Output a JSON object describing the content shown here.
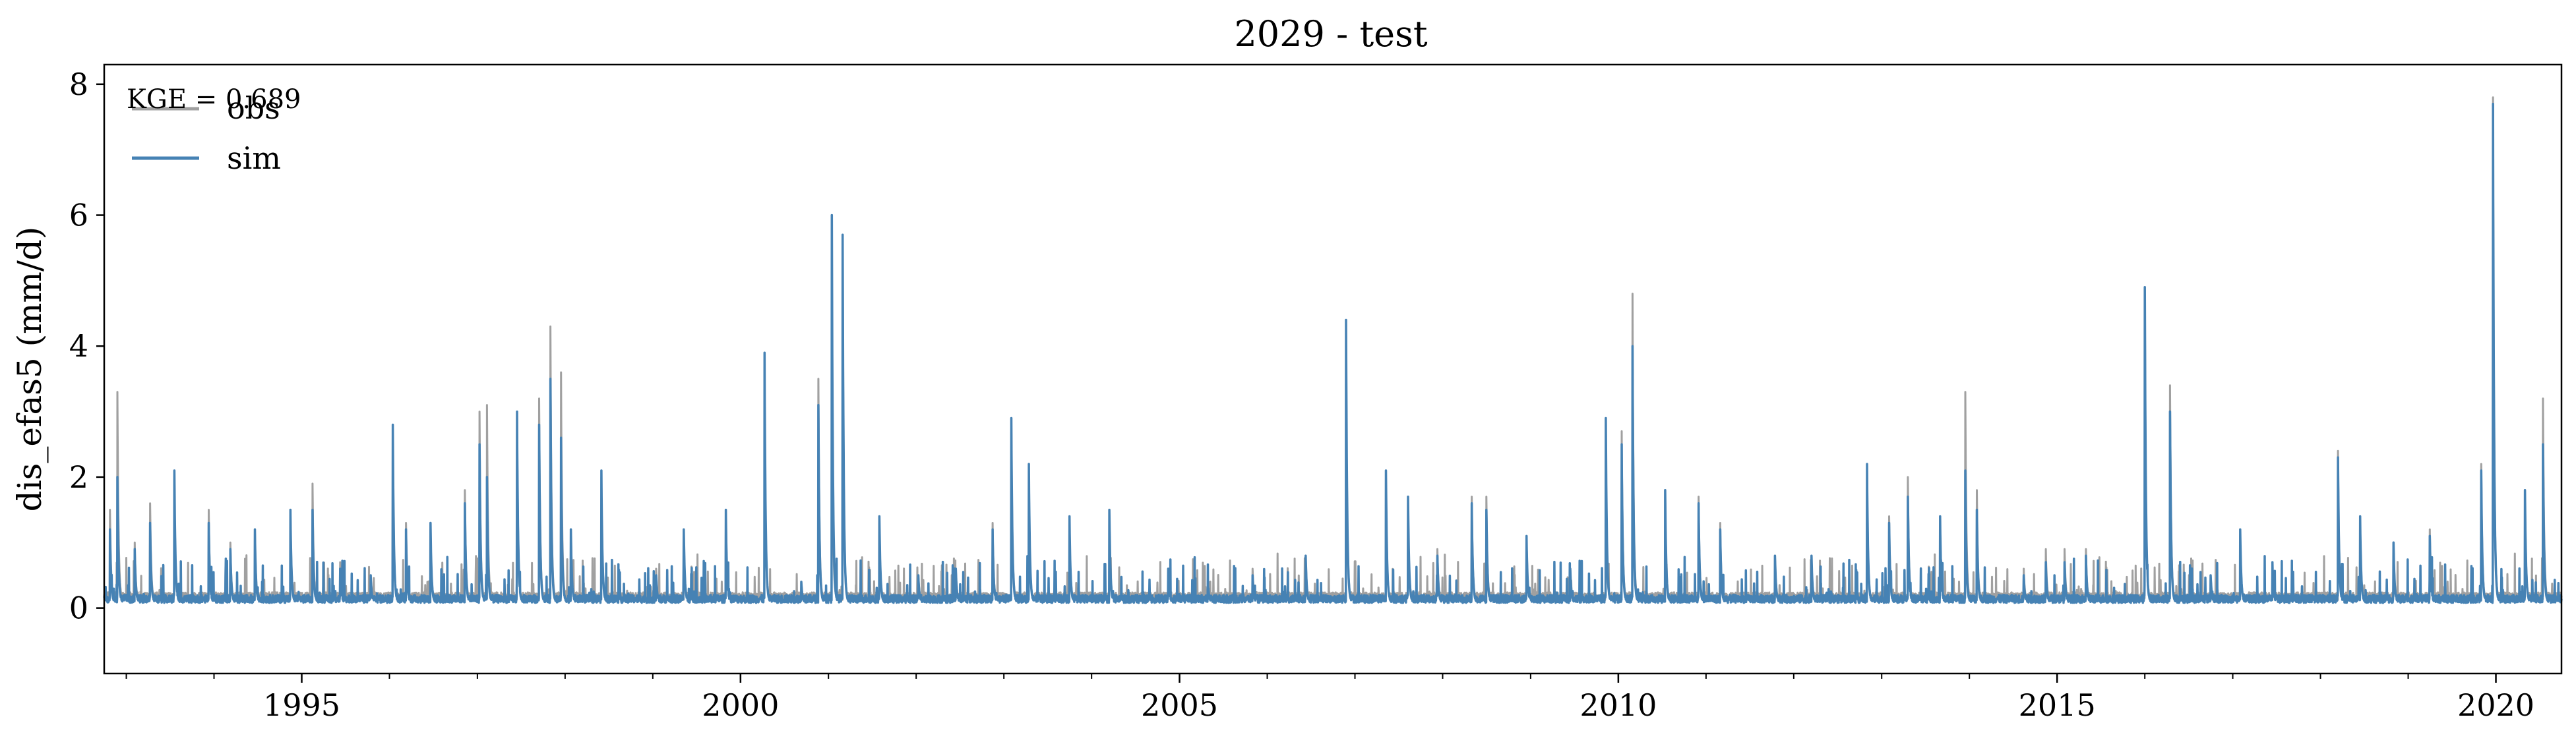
{
  "chart_data": {
    "type": "line",
    "title": "2029 - test",
    "xlabel": "",
    "ylabel": "dis_efas5 (mm/d)",
    "xlim": [
      "1992-10-01",
      "2020-09-30"
    ],
    "ylim": [
      -1,
      8.3
    ],
    "x_ticks": [
      "1995",
      "2000",
      "2005",
      "2010",
      "2015",
      "2020"
    ],
    "y_ticks": [
      0,
      2,
      4,
      6,
      8
    ],
    "grid": false,
    "legend": {
      "position": "top-left",
      "entries": [
        "obs",
        "sim"
      ]
    },
    "annotation": "KGE = 0.689",
    "colors": {
      "obs": "#a0a0a0",
      "sim": "#4682b4"
    },
    "series": [
      {
        "name": "obs",
        "peaks": [
          [
            "1992-10-25",
            1.5
          ],
          [
            "1992-11-25",
            3.3
          ],
          [
            "1993-02-05",
            1.0
          ],
          [
            "1993-04-10",
            1.6
          ],
          [
            "1993-07-20",
            2.0
          ],
          [
            "1993-12-10",
            1.5
          ],
          [
            "1994-03-10",
            1.0
          ],
          [
            "1994-06-20",
            1.2
          ],
          [
            "1994-11-15",
            1.5
          ],
          [
            "1995-02-15",
            1.9
          ],
          [
            "1995-06-10",
            0.7
          ],
          [
            "1995-10-15",
            0.5
          ],
          [
            "1996-01-15",
            2.2
          ],
          [
            "1996-03-10",
            1.3
          ],
          [
            "1996-06-20",
            1.2
          ],
          [
            "1996-11-10",
            1.8
          ],
          [
            "1997-01-10",
            3.0
          ],
          [
            "1997-02-10",
            3.1
          ],
          [
            "1997-06-15",
            3.0
          ],
          [
            "1997-09-15",
            3.2
          ],
          [
            "1997-11-01",
            4.3
          ],
          [
            "1997-12-15",
            3.6
          ],
          [
            "1998-01-25",
            1.2
          ],
          [
            "1998-06-01",
            2.0
          ],
          [
            "1999-01-15",
            0.6
          ],
          [
            "1999-05-10",
            1.1
          ],
          [
            "1999-11-01",
            1.5
          ],
          [
            "2000-04-10",
            3.3
          ],
          [
            "2000-09-10",
            0.4
          ],
          [
            "2000-11-20",
            3.5
          ],
          [
            "2001-01-15",
            3.8
          ],
          [
            "2001-03-01",
            5.5
          ],
          [
            "2001-08-01",
            1.3
          ],
          [
            "2002-01-10",
            0.5
          ],
          [
            "2002-06-15",
            0.6
          ],
          [
            "2002-11-15",
            1.3
          ],
          [
            "2003-02-01",
            2.8
          ],
          [
            "2003-04-15",
            2.0
          ],
          [
            "2003-10-01",
            1.3
          ],
          [
            "2004-03-15",
            1.4
          ],
          [
            "2004-11-15",
            0.6
          ],
          [
            "2005-05-01",
            0.4
          ],
          [
            "2005-11-01",
            0.6
          ],
          [
            "2006-06-10",
            0.8
          ],
          [
            "2006-11-25",
            4.2
          ],
          [
            "2007-05-10",
            2.0
          ],
          [
            "2007-08-10",
            1.6
          ],
          [
            "2007-12-10",
            0.9
          ],
          [
            "2008-05-01",
            1.7
          ],
          [
            "2008-07-01",
            1.7
          ],
          [
            "2008-12-15",
            1.1
          ],
          [
            "2009-06-15",
            0.6
          ],
          [
            "2009-11-10",
            2.0
          ],
          [
            "2010-01-15",
            2.7
          ],
          [
            "2010-03-01",
            4.8
          ],
          [
            "2010-07-15",
            1.8
          ],
          [
            "2010-12-01",
            1.7
          ],
          [
            "2011-03-01",
            1.3
          ],
          [
            "2011-10-15",
            0.8
          ],
          [
            "2012-03-15",
            0.7
          ],
          [
            "2012-11-01",
            2.1
          ],
          [
            "2013-02-01",
            1.4
          ],
          [
            "2013-04-20",
            2.0
          ],
          [
            "2013-09-01",
            1.3
          ],
          [
            "2013-12-15",
            3.3
          ],
          [
            "2014-02-01",
            1.8
          ],
          [
            "2014-08-15",
            0.6
          ],
          [
            "2014-11-15",
            0.9
          ],
          [
            "2015-02-01",
            0.9
          ],
          [
            "2015-05-01",
            0.9
          ],
          [
            "2016-01-01",
            4.8
          ],
          [
            "2016-04-15",
            3.4
          ],
          [
            "2016-10-01",
            0.5
          ],
          [
            "2017-02-01",
            1.1
          ],
          [
            "2017-06-15",
            0.6
          ],
          [
            "2018-03-15",
            2.4
          ],
          [
            "2018-06-15",
            1.3
          ],
          [
            "2018-11-01",
            1.0
          ],
          [
            "2019-04-01",
            1.2
          ],
          [
            "2019-11-01",
            2.2
          ],
          [
            "2019-12-20",
            7.8
          ],
          [
            "2020-05-01",
            1.8
          ],
          [
            "2020-07-15",
            3.2
          ]
        ]
      },
      {
        "name": "sim",
        "peaks": [
          [
            "1992-10-25",
            1.2
          ],
          [
            "1992-11-25",
            2.0
          ],
          [
            "1993-02-05",
            0.9
          ],
          [
            "1993-04-10",
            1.3
          ],
          [
            "1993-07-20",
            2.1
          ],
          [
            "1993-12-10",
            1.3
          ],
          [
            "1994-03-10",
            0.9
          ],
          [
            "1994-06-20",
            1.2
          ],
          [
            "1994-11-15",
            1.5
          ],
          [
            "1995-02-15",
            1.5
          ],
          [
            "1995-06-10",
            0.6
          ],
          [
            "1995-10-15",
            0.5
          ],
          [
            "1996-01-15",
            2.8
          ],
          [
            "1996-03-10",
            1.2
          ],
          [
            "1996-06-20",
            1.3
          ],
          [
            "1996-11-10",
            1.6
          ],
          [
            "1997-01-10",
            2.5
          ],
          [
            "1997-02-10",
            2.0
          ],
          [
            "1997-06-15",
            3.0
          ],
          [
            "1997-09-15",
            2.8
          ],
          [
            "1997-11-01",
            3.5
          ],
          [
            "1997-12-15",
            2.6
          ],
          [
            "1998-01-25",
            1.2
          ],
          [
            "1998-06-01",
            2.1
          ],
          [
            "1999-01-15",
            0.5
          ],
          [
            "1999-05-10",
            1.2
          ],
          [
            "1999-11-01",
            1.5
          ],
          [
            "2000-04-10",
            3.9
          ],
          [
            "2000-09-10",
            0.4
          ],
          [
            "2000-11-20",
            3.1
          ],
          [
            "2001-01-15",
            6.0
          ],
          [
            "2001-03-01",
            5.7
          ],
          [
            "2001-08-01",
            1.4
          ],
          [
            "2002-01-10",
            0.5
          ],
          [
            "2002-06-15",
            0.6
          ],
          [
            "2002-11-15",
            1.2
          ],
          [
            "2003-02-01",
            2.9
          ],
          [
            "2003-04-15",
            2.2
          ],
          [
            "2003-10-01",
            1.4
          ],
          [
            "2004-03-15",
            1.5
          ],
          [
            "2004-11-15",
            0.6
          ],
          [
            "2005-05-01",
            0.3
          ],
          [
            "2005-11-01",
            0.5
          ],
          [
            "2006-06-10",
            0.8
          ],
          [
            "2006-11-25",
            4.4
          ],
          [
            "2007-05-10",
            2.1
          ],
          [
            "2007-08-10",
            1.7
          ],
          [
            "2007-12-10",
            0.8
          ],
          [
            "2008-05-01",
            1.6
          ],
          [
            "2008-07-01",
            1.5
          ],
          [
            "2008-12-15",
            1.1
          ],
          [
            "2009-06-15",
            0.6
          ],
          [
            "2009-11-10",
            2.9
          ],
          [
            "2010-01-15",
            2.5
          ],
          [
            "2010-03-01",
            4.0
          ],
          [
            "2010-07-15",
            1.8
          ],
          [
            "2010-12-01",
            1.6
          ],
          [
            "2011-03-01",
            1.2
          ],
          [
            "2011-10-15",
            0.8
          ],
          [
            "2012-03-15",
            0.8
          ],
          [
            "2012-11-01",
            2.2
          ],
          [
            "2013-02-01",
            1.3
          ],
          [
            "2013-04-20",
            1.7
          ],
          [
            "2013-09-01",
            1.4
          ],
          [
            "2013-12-15",
            2.1
          ],
          [
            "2014-02-01",
            1.5
          ],
          [
            "2014-08-15",
            0.5
          ],
          [
            "2014-11-15",
            0.7
          ],
          [
            "2015-02-01",
            0.7
          ],
          [
            "2015-05-01",
            0.8
          ],
          [
            "2016-01-01",
            4.9
          ],
          [
            "2016-04-15",
            3.0
          ],
          [
            "2016-10-01",
            0.5
          ],
          [
            "2017-02-01",
            1.2
          ],
          [
            "2017-06-15",
            0.7
          ],
          [
            "2018-03-15",
            2.3
          ],
          [
            "2018-06-15",
            1.4
          ],
          [
            "2018-11-01",
            1.0
          ],
          [
            "2019-04-01",
            1.1
          ],
          [
            "2019-11-01",
            2.1
          ],
          [
            "2019-12-20",
            7.7
          ],
          [
            "2020-05-01",
            1.8
          ],
          [
            "2020-07-15",
            2.5
          ]
        ]
      }
    ]
  }
}
